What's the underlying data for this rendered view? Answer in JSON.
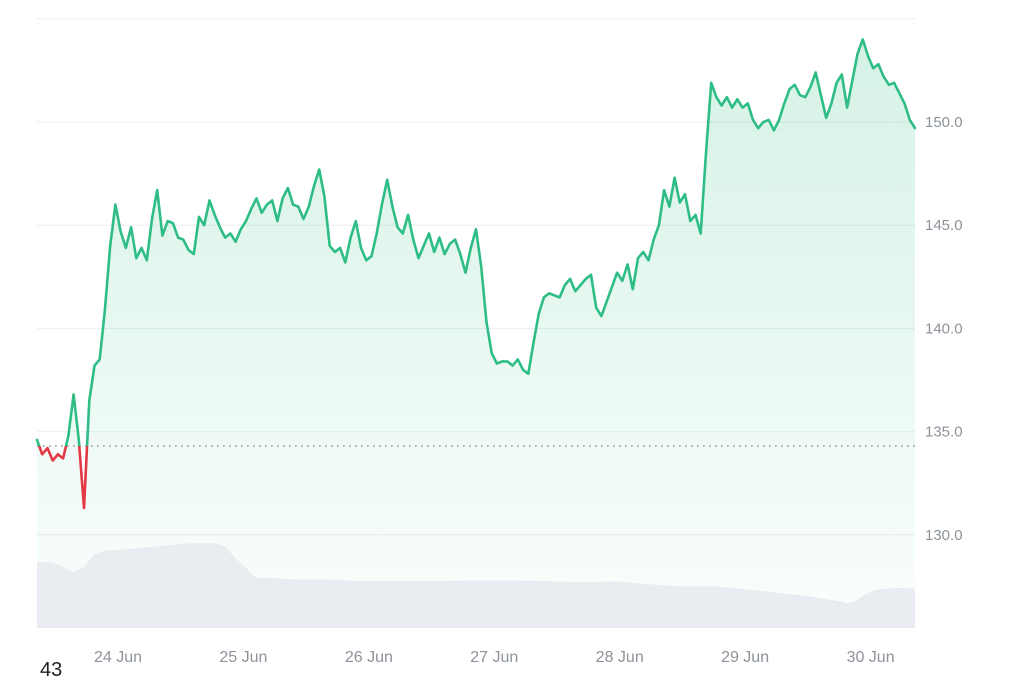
{
  "page": {
    "partial_text": "43"
  },
  "chart_data": {
    "type": "area",
    "description": "7-day price chart with baseline (previous close) dotted line, green above baseline, red below, and volume profile strip at bottom",
    "x_axis": {
      "tick_labels": [
        "24 Jun",
        "25 Jun",
        "26 Jun",
        "27 Jun",
        "28 Jun",
        "29 Jun",
        "30 Jun"
      ],
      "first_tick_hour": 15.5,
      "tick_interval_hours": 24,
      "total_hours": 168
    },
    "y_axis": {
      "ticks": [
        {
          "value": 150,
          "label": "150.0"
        },
        {
          "value": 145,
          "label": "145.0"
        },
        {
          "value": 140,
          "label": "140.0"
        },
        {
          "value": 135,
          "label": "135.0"
        },
        {
          "value": 130,
          "label": "130.0"
        }
      ],
      "gridline_values": [
        155,
        150,
        145,
        140,
        135,
        130
      ],
      "ylim": [
        125.5,
        155.2
      ],
      "grid": true,
      "side": "right"
    },
    "baseline_value": 134.3,
    "series": [
      {
        "name": "price",
        "sampling": "hourly",
        "values": [
          134.6,
          133.9,
          134.2,
          133.6,
          133.9,
          133.7,
          134.8,
          136.8,
          134.6,
          131.3,
          136.5,
          138.2,
          138.5,
          140.9,
          144.0,
          146.0,
          144.7,
          143.9,
          144.9,
          143.4,
          143.9,
          143.3,
          145.3,
          146.7,
          144.5,
          145.2,
          145.1,
          144.4,
          144.3,
          143.8,
          143.6,
          145.4,
          145.0,
          146.2,
          145.5,
          144.9,
          144.4,
          144.6,
          144.2,
          144.8,
          145.2,
          145.8,
          146.3,
          145.6,
          146.0,
          146.2,
          145.2,
          146.3,
          146.8,
          146.0,
          145.9,
          145.3,
          145.9,
          146.9,
          147.7,
          146.4,
          144.0,
          143.7,
          143.9,
          143.2,
          144.4,
          145.2,
          143.9,
          143.3,
          143.5,
          144.6,
          146.0,
          147.2,
          145.9,
          144.9,
          144.6,
          145.5,
          144.3,
          143.4,
          144.0,
          144.6,
          143.7,
          144.4,
          143.6,
          144.1,
          144.3,
          143.6,
          142.7,
          143.9,
          144.8,
          143.0,
          140.3,
          138.8,
          138.3,
          138.4,
          138.4,
          138.2,
          138.5,
          138.0,
          137.8,
          139.3,
          140.7,
          141.5,
          141.7,
          141.6,
          141.5,
          142.1,
          142.4,
          141.8,
          142.1,
          142.4,
          142.6,
          141.0,
          140.6,
          141.3,
          142.0,
          142.7,
          142.3,
          143.1,
          141.9,
          143.4,
          143.7,
          143.3,
          144.3,
          145.0,
          146.7,
          145.9,
          147.3,
          146.1,
          146.5,
          145.2,
          145.5,
          144.6,
          148.5,
          151.9,
          151.2,
          150.8,
          151.2,
          150.7,
          151.1,
          150.7,
          150.9,
          150.1,
          149.7,
          150.0,
          150.1,
          149.6,
          150.1,
          150.9,
          151.6,
          151.8,
          151.3,
          151.2,
          151.7,
          152.4,
          151.3,
          150.2,
          150.9,
          151.9,
          152.3,
          150.7,
          152.0,
          153.3,
          154.0,
          153.2,
          152.6,
          152.8,
          152.2,
          151.8,
          151.9,
          151.4,
          150.9,
          150.1,
          149.7
        ]
      }
    ],
    "volume_profile": [
      [
        0,
        0.77
      ],
      [
        2,
        0.78
      ],
      [
        4,
        0.75
      ],
      [
        6,
        0.68
      ],
      [
        7,
        0.66
      ],
      [
        9,
        0.71
      ],
      [
        10,
        0.8
      ],
      [
        11,
        0.87
      ],
      [
        13,
        0.91
      ],
      [
        15,
        0.92
      ],
      [
        18,
        0.93
      ],
      [
        21,
        0.95
      ],
      [
        23,
        0.96
      ],
      [
        26,
        0.98
      ],
      [
        30,
        1.0
      ],
      [
        34,
        1.0
      ],
      [
        36,
        0.96
      ],
      [
        37,
        0.89
      ],
      [
        38,
        0.82
      ],
      [
        40,
        0.71
      ],
      [
        41,
        0.64
      ],
      [
        42,
        0.59
      ],
      [
        45,
        0.59
      ],
      [
        47,
        0.58
      ],
      [
        50,
        0.57
      ],
      [
        56,
        0.57
      ],
      [
        62,
        0.55
      ],
      [
        69,
        0.55
      ],
      [
        77,
        0.55
      ],
      [
        83,
        0.56
      ],
      [
        90,
        0.56
      ],
      [
        98,
        0.55
      ],
      [
        104,
        0.54
      ],
      [
        111,
        0.55
      ],
      [
        116,
        0.52
      ],
      [
        123,
        0.49
      ],
      [
        130,
        0.49
      ],
      [
        135,
        0.46
      ],
      [
        141,
        0.42
      ],
      [
        147,
        0.38
      ],
      [
        151,
        0.34
      ],
      [
        154,
        0.31
      ],
      [
        155,
        0.29
      ],
      [
        157,
        0.33
      ],
      [
        158,
        0.38
      ],
      [
        160,
        0.44
      ],
      [
        162,
        0.46
      ],
      [
        164,
        0.47
      ],
      [
        166,
        0.47
      ],
      [
        168,
        0.46
      ]
    ],
    "colors": {
      "up": "#2ebd85",
      "down": "#e23a45",
      "area_fill_top": "rgba(47,190,133,0.20)",
      "area_fill_bottom": "rgba(47,190,133,0.02)",
      "volume_fill": "#e9edf2",
      "gridline": "#edeef0",
      "baseline_dots": "#9aa0a7",
      "axis_text": "#8d939a"
    }
  }
}
